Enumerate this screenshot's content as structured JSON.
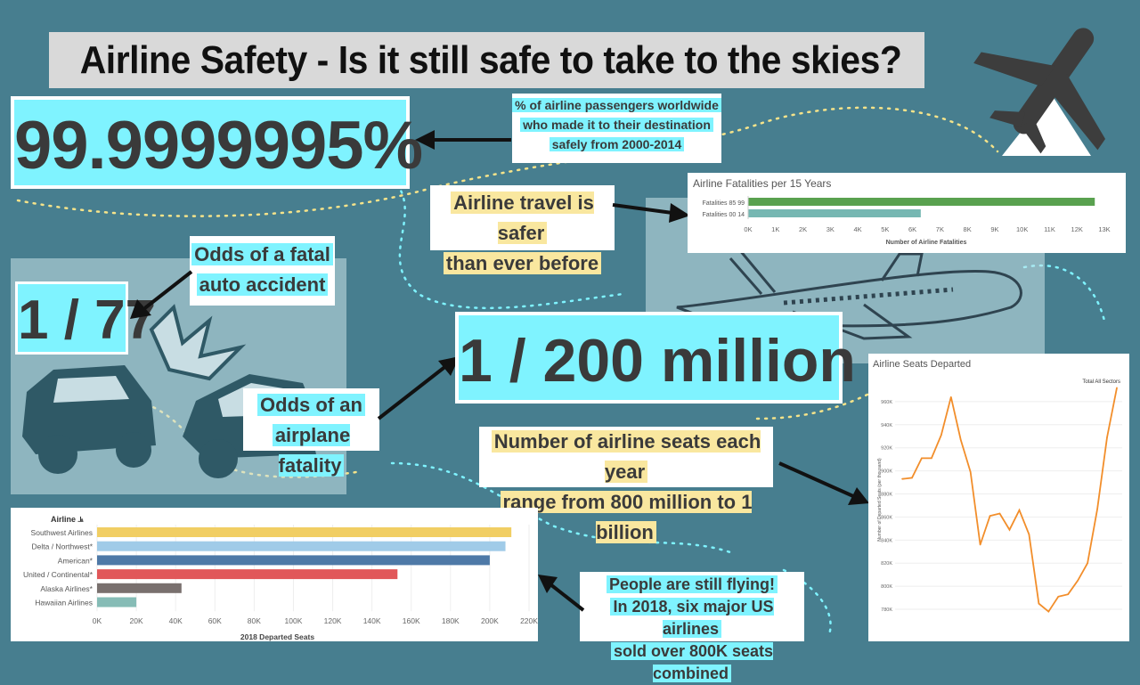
{
  "title": "Airline Safety - Is it still safe to take to the skies?",
  "stats": {
    "pct": "99.9999995%",
    "pct_caption_1": "% of airline passengers worldwide",
    "pct_caption_2": "who made it to their destination",
    "pct_caption_3": "safely from 2000-2014",
    "auto_odds": "1 / 77",
    "auto_caption_1": "Odds of a fatal",
    "auto_caption_2": "auto accident",
    "plane_odds": "1 / 200 million",
    "plane_caption_1": "Odds of an",
    "plane_caption_2": "airplane fatality",
    "safer_1": "Airline travel is safer",
    "safer_2": "than ever before",
    "seats_1": "Number of airline seats each year",
    "seats_2": "range from 800 million to 1 billion",
    "flying_1": "People are still flying!",
    "flying_2": "In 2018, six major US airlines",
    "flying_3": "sold over 800K seats combined"
  },
  "colors": {
    "background": "#477e8f",
    "highlight": "#7ff3ff",
    "yellow_highlight": "#f9e79f"
  },
  "chart_data": [
    {
      "type": "bar",
      "title": "Airline Fatalities per 15 Years",
      "categories": [
        "Fatalities 85 99",
        "Fatalities 00 14"
      ],
      "values": [
        12650,
        6300
      ],
      "colors": [
        "#59a14f",
        "#76b7b2"
      ],
      "xlabel": "Number of Airline Fatalities",
      "xlim": [
        0,
        13000
      ],
      "ticks": [
        0,
        1000,
        2000,
        3000,
        4000,
        5000,
        6000,
        7000,
        8000,
        9000,
        10000,
        11000,
        12000,
        13000
      ],
      "tick_labels": [
        "0K",
        "1K",
        "2K",
        "3K",
        "4K",
        "5K",
        "6K",
        "7K",
        "8K",
        "9K",
        "10K",
        "11K",
        "12K",
        "13K"
      ]
    },
    {
      "type": "bar",
      "title": "Airline",
      "categories": [
        "Southwest Airlines",
        "Delta / Northwest*",
        "American*",
        "United / Continental*",
        "Alaska Airlines*",
        "Hawaiian Airlines"
      ],
      "values": [
        211000,
        208000,
        200000,
        153000,
        43000,
        20000
      ],
      "colors": [
        "#f1ce63",
        "#a0cbe8",
        "#4e79a7",
        "#e15759",
        "#79706e",
        "#86bcb6"
      ],
      "xlabel": "2018 Departed Seats",
      "xlim": [
        0,
        220000
      ],
      "ticks": [
        0,
        20000,
        40000,
        60000,
        80000,
        100000,
        120000,
        140000,
        160000,
        180000,
        200000,
        220000
      ],
      "tick_labels": [
        "0K",
        "20K",
        "40K",
        "60K",
        "80K",
        "100K",
        "120K",
        "140K",
        "160K",
        "180K",
        "200K",
        "220K"
      ]
    },
    {
      "type": "line",
      "title": "Airline Seats Departed",
      "legend": "Total All Sectors",
      "ylabel": "Number of Departed Seats (per thousand)",
      "color": "#f28e2b",
      "ylim": [
        770000,
        980000
      ],
      "ticks": [
        780000,
        800000,
        820000,
        840000,
        860000,
        880000,
        900000,
        920000,
        940000,
        960000
      ],
      "tick_labels": [
        "780K",
        "800K",
        "820K",
        "840K",
        "860K",
        "880K",
        "900K",
        "920K",
        "940K",
        "960K"
      ],
      "values": [
        893000,
        894000,
        911000,
        911000,
        931000,
        964000,
        927000,
        899000,
        836000,
        861000,
        863000,
        849000,
        866000,
        845000,
        785000,
        778000,
        791000,
        793000,
        805000,
        820000,
        867000,
        929000,
        972000
      ]
    }
  ]
}
